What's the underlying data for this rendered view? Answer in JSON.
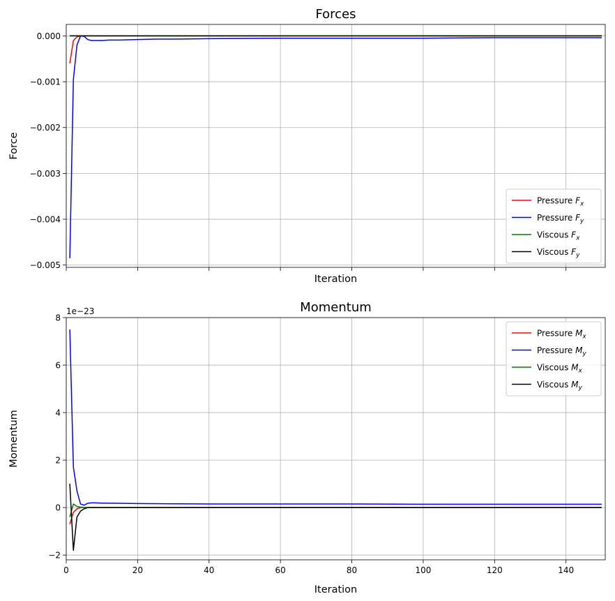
{
  "chart_data": [
    {
      "type": "line",
      "title": "Forces",
      "xlabel": "Iteration",
      "ylabel": "Force",
      "xlim": [
        0,
        151
      ],
      "ylim": [
        -0.00505,
        0.00025
      ],
      "x_ticks": [
        0,
        20,
        40,
        60,
        80,
        100,
        120,
        140
      ],
      "x_tick_labels": [],
      "y_ticks": [
        -0.005,
        -0.004,
        -0.003,
        -0.002,
        -0.001,
        0.0
      ],
      "y_tick_labels": [
        "−0.005",
        "−0.004",
        "−0.003",
        "−0.002",
        "−0.001",
        "0.000"
      ],
      "grid": true,
      "legend_position": "lower-right",
      "series": [
        {
          "name": "Pressure",
          "subscript": "x",
          "color": "#ff0000",
          "x": [
            1,
            2,
            3,
            4,
            5,
            6,
            8,
            10,
            15,
            20,
            40,
            60,
            80,
            100,
            120,
            140,
            150
          ],
          "y": [
            -0.0006,
            -0.0001,
            -2e-05,
            0,
            0,
            0,
            0,
            0,
            0,
            0,
            0,
            0,
            0,
            0,
            0,
            0,
            0
          ]
        },
        {
          "name": "Pressure",
          "subscript": "y",
          "color": "#0000ff",
          "x": [
            1,
            2,
            3,
            4,
            5,
            6,
            7,
            8,
            10,
            12,
            15,
            20,
            25,
            30,
            40,
            60,
            80,
            100,
            120,
            140,
            150
          ],
          "y": [
            -0.00485,
            -0.00095,
            -0.0002,
            0,
            -1e-05,
            -8e-05,
            -0.0001,
            -0.0001,
            -0.0001,
            -9e-05,
            -9e-05,
            -8e-05,
            -7e-05,
            -7e-05,
            -6e-05,
            -5e-05,
            -5e-05,
            -5e-05,
            -4e-05,
            -4e-05,
            -4e-05
          ]
        },
        {
          "name": "Viscous",
          "subscript": "x",
          "color": "#008000",
          "x": [
            1,
            150
          ],
          "y": [
            0,
            0
          ]
        },
        {
          "name": "Viscous",
          "subscript": "y",
          "color": "#000000",
          "x": [
            1,
            150
          ],
          "y": [
            0,
            0
          ]
        }
      ]
    },
    {
      "type": "line",
      "title": "Momentum",
      "xlabel": "Iteration",
      "ylabel": "Momentum",
      "offset_label": "1e−23",
      "xlim": [
        0,
        151
      ],
      "ylim": [
        -2.2,
        8.0
      ],
      "x_ticks": [
        0,
        20,
        40,
        60,
        80,
        100,
        120,
        140
      ],
      "x_tick_labels": [
        "0",
        "20",
        "40",
        "60",
        "80",
        "100",
        "120",
        "140"
      ],
      "y_ticks": [
        -2,
        0,
        2,
        4,
        6,
        8
      ],
      "y_tick_labels": [
        "−2",
        "0",
        "2",
        "4",
        "6",
        "8"
      ],
      "grid": true,
      "legend_position": "upper-right",
      "series": [
        {
          "name": "Pressure",
          "subscript": "x",
          "color": "#ff0000",
          "x": [
            1,
            2,
            3,
            4,
            5,
            6,
            8,
            10,
            20,
            40,
            60,
            80,
            100,
            120,
            140,
            150
          ],
          "y": [
            -0.7,
            -0.2,
            -0.05,
            0,
            0,
            0,
            0,
            0,
            0,
            0,
            0,
            0,
            0,
            0,
            0,
            0
          ]
        },
        {
          "name": "Pressure",
          "subscript": "y",
          "color": "#0000ff",
          "x": [
            1,
            2,
            3,
            4,
            5,
            6,
            7,
            8,
            10,
            15,
            20,
            30,
            40,
            60,
            80,
            100,
            120,
            140,
            150
          ],
          "y": [
            7.5,
            1.7,
            0.7,
            0.15,
            0.1,
            0.18,
            0.2,
            0.2,
            0.19,
            0.18,
            0.17,
            0.16,
            0.15,
            0.15,
            0.15,
            0.14,
            0.14,
            0.14,
            0.14
          ]
        },
        {
          "name": "Viscous",
          "subscript": "x",
          "color": "#008000",
          "x": [
            1,
            2,
            3,
            4,
            5,
            6,
            8,
            10,
            20,
            40,
            60,
            80,
            100,
            120,
            140,
            150
          ],
          "y": [
            -0.4,
            0.15,
            0.05,
            0.02,
            0.01,
            0,
            0,
            0,
            0,
            0,
            0,
            0,
            0,
            0,
            0,
            0
          ]
        },
        {
          "name": "Viscous",
          "subscript": "y",
          "color": "#000000",
          "x": [
            1,
            2,
            3,
            4,
            5,
            6,
            7,
            8,
            10,
            20,
            40,
            60,
            80,
            100,
            120,
            140,
            150
          ],
          "y": [
            1.0,
            -1.8,
            -0.4,
            -0.15,
            -0.05,
            0,
            0,
            0,
            0,
            0,
            0,
            0,
            0,
            0,
            0,
            0,
            0
          ]
        }
      ]
    }
  ]
}
